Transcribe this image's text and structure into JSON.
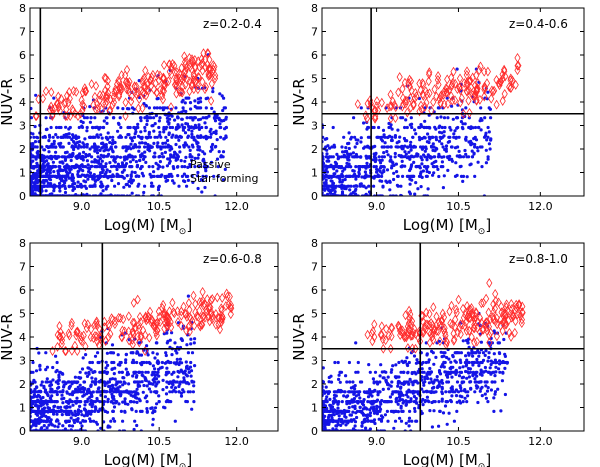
{
  "figure": {
    "background": "#ffffff"
  },
  "colors": {
    "passive": "#ff2a2a",
    "star_forming": "#1414e6",
    "axis": "#000000"
  },
  "chart_data": [
    {
      "type": "scatter",
      "redshift_label": "z=0.2-0.4",
      "xlabel": "Log(M) [M",
      "xlabel_symbol": "⊙",
      "xlabel_close": "]",
      "ylabel": "NUV-R",
      "xlim": [
        8.0,
        12.8
      ],
      "ylim": [
        0,
        8
      ],
      "xticks": [
        "9.0",
        "10.5",
        "12.0"
      ],
      "xtick_values": [
        9.0,
        10.5,
        12.0
      ],
      "yticks": [
        "0",
        "1",
        "2",
        "3",
        "4",
        "5",
        "6",
        "7",
        "8"
      ],
      "cut_mass": 8.2,
      "cut_color": 3.5,
      "legend": [
        "Passive",
        "Star-forming"
      ],
      "series": [
        {
          "name": "Passive",
          "marker": "open-diamond",
          "color": "#ff2a2a",
          "x_range": [
            8.1,
            11.6
          ],
          "y_range": [
            3.4,
            6.4
          ],
          "count": 240,
          "trend": 0.55,
          "spread": 0.45
        },
        {
          "name": "Star-forming",
          "marker": "dot",
          "color": "#1414e6",
          "x_range": [
            8.0,
            11.8
          ],
          "y_range": [
            0.0,
            6.4
          ],
          "count": 1600,
          "trend": 0.6,
          "spread": 1.1
        }
      ]
    },
    {
      "type": "scatter",
      "redshift_label": "z=0.4-0.6",
      "xlabel": "Log(M) [M",
      "xlabel_symbol": "⊙",
      "xlabel_close": "]",
      "ylabel": "NUV-R",
      "xlim": [
        8.0,
        12.8
      ],
      "ylim": [
        0,
        8
      ],
      "xticks": [
        "9.0",
        "10.5",
        "12.0"
      ],
      "xtick_values": [
        9.0,
        10.5,
        12.0
      ],
      "yticks": [
        "0",
        "1",
        "2",
        "3",
        "4",
        "5",
        "6",
        "7",
        "8"
      ],
      "cut_mass": 8.9,
      "cut_color": 3.5,
      "legend": [],
      "series": [
        {
          "name": "Passive",
          "marker": "open-diamond",
          "color": "#ff2a2a",
          "x_range": [
            8.6,
            11.6
          ],
          "y_range": [
            3.3,
            6.2
          ],
          "count": 170,
          "trend": 0.45,
          "spread": 0.45
        },
        {
          "name": "Star-forming",
          "marker": "dot",
          "color": "#1414e6",
          "x_range": [
            8.0,
            11.1
          ],
          "y_range": [
            0.0,
            5.4
          ],
          "count": 900,
          "trend": 0.7,
          "spread": 0.9
        }
      ]
    },
    {
      "type": "scatter",
      "redshift_label": "z=0.6-0.8",
      "xlabel": "Log(M) [M",
      "xlabel_symbol": "⊙",
      "xlabel_close": "]",
      "ylabel": "NUV-R",
      "xlim": [
        8.0,
        12.8
      ],
      "ylim": [
        0,
        8
      ],
      "xticks": [
        "9.0",
        "10.5",
        "12.0"
      ],
      "xtick_values": [
        9.0,
        10.5,
        12.0
      ],
      "yticks": [
        "0",
        "1",
        "2",
        "3",
        "4",
        "5",
        "6",
        "7",
        "8"
      ],
      "cut_mass": 9.4,
      "cut_color": 3.5,
      "legend": [],
      "series": [
        {
          "name": "Passive",
          "marker": "open-diamond",
          "color": "#ff2a2a",
          "x_range": [
            8.4,
            11.9
          ],
          "y_range": [
            3.4,
            6.4
          ],
          "count": 210,
          "trend": 0.4,
          "spread": 0.4
        },
        {
          "name": "Star-forming",
          "marker": "dot",
          "color": "#1414e6",
          "x_range": [
            8.0,
            11.2
          ],
          "y_range": [
            0.0,
            6.2
          ],
          "count": 1100,
          "trend": 0.7,
          "spread": 0.85
        }
      ]
    },
    {
      "type": "scatter",
      "redshift_label": "z=0.8-1.0",
      "xlabel": "Log(M) [M",
      "xlabel_symbol": "⊙",
      "xlabel_close": "]",
      "ylabel": "NUV-R",
      "xlim": [
        8.0,
        12.8
      ],
      "ylim": [
        0,
        8
      ],
      "xticks": [
        "9.0",
        "10.5",
        "12.0"
      ],
      "xtick_values": [
        9.0,
        10.5,
        12.0
      ],
      "yticks": [
        "0",
        "1",
        "2",
        "3",
        "4",
        "5",
        "6",
        "7",
        "8"
      ],
      "cut_mass": 9.8,
      "cut_color": 3.5,
      "legend": [],
      "series": [
        {
          "name": "Passive",
          "marker": "open-diamond",
          "color": "#ff2a2a",
          "x_range": [
            8.8,
            11.7
          ],
          "y_range": [
            3.5,
            6.3
          ],
          "count": 220,
          "trend": 0.35,
          "spread": 0.45
        },
        {
          "name": "Star-forming",
          "marker": "dot",
          "color": "#1414e6",
          "x_range": [
            8.0,
            11.4
          ],
          "y_range": [
            0.0,
            5.6
          ],
          "count": 1050,
          "trend": 0.7,
          "spread": 0.8
        }
      ]
    }
  ]
}
